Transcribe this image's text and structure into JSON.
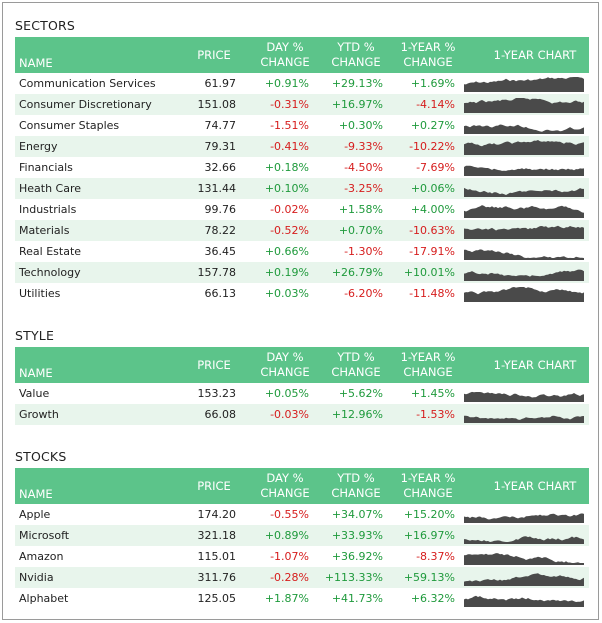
{
  "headers": {
    "name": "NAME",
    "price": "PRICE",
    "day1": "DAY %",
    "day2": "CHANGE",
    "ytd1": "YTD %",
    "ytd2": "CHANGE",
    "yr1": "1-YEAR %",
    "yr2": "CHANGE",
    "chart": "1-YEAR CHART"
  },
  "colors": {
    "header_bg": "#5cc48a",
    "alt_row": "#e8f5ec",
    "positive": "#1f9a3c",
    "negative": "#d61d1d",
    "sparkline": "#4a4a4a"
  },
  "sections": [
    {
      "title": "SECTORS",
      "rows": [
        {
          "name": "Communication Services",
          "price": "61.97",
          "day": "+0.91%",
          "ytd": "+29.13%",
          "yr": "+1.69%"
        },
        {
          "name": "Consumer Discretionary",
          "price": "151.08",
          "day": "-0.31%",
          "ytd": "+16.97%",
          "yr": "-4.14%"
        },
        {
          "name": "Consumer Staples",
          "price": "74.77",
          "day": "-1.51%",
          "ytd": "+0.30%",
          "yr": "+0.27%"
        },
        {
          "name": "Energy",
          "price": "79.31",
          "day": "-0.41%",
          "ytd": "-9.33%",
          "yr": "-10.22%"
        },
        {
          "name": "Financials",
          "price": "32.66",
          "day": "+0.18%",
          "ytd": "-4.50%",
          "yr": "-7.69%"
        },
        {
          "name": "Heath Care",
          "price": "131.44",
          "day": "+0.10%",
          "ytd": "-3.25%",
          "yr": "+0.06%"
        },
        {
          "name": "Industrials",
          "price": "99.76",
          "day": "-0.02%",
          "ytd": "+1.58%",
          "yr": "+4.00%"
        },
        {
          "name": "Materials",
          "price": "78.22",
          "day": "-0.52%",
          "ytd": "+0.70%",
          "yr": "-10.63%"
        },
        {
          "name": "Real Estate",
          "price": "36.45",
          "day": "+0.66%",
          "ytd": "-1.30%",
          "yr": "-17.91%"
        },
        {
          "name": "Technology",
          "price": "157.78",
          "day": "+0.19%",
          "ytd": "+26.79%",
          "yr": "+10.01%"
        },
        {
          "name": "Utilities",
          "price": "66.13",
          "day": "+0.03%",
          "ytd": "-6.20%",
          "yr": "-11.48%"
        }
      ]
    },
    {
      "title": "STYLE",
      "rows": [
        {
          "name": "Value",
          "price": "153.23",
          "day": "+0.05%",
          "ytd": "+5.62%",
          "yr": "+1.45%"
        },
        {
          "name": "Growth",
          "price": "66.08",
          "day": "-0.03%",
          "ytd": "+12.96%",
          "yr": "-1.53%"
        }
      ]
    },
    {
      "title": "STOCKS",
      "rows": [
        {
          "name": "Apple",
          "price": "174.20",
          "day": "-0.55%",
          "ytd": "+34.07%",
          "yr": "+15.20%"
        },
        {
          "name": "Microsoft",
          "price": "321.18",
          "day": "+0.89%",
          "ytd": "+33.93%",
          "yr": "+16.97%"
        },
        {
          "name": "Amazon",
          "price": "115.01",
          "day": "-1.07%",
          "ytd": "+36.92%",
          "yr": "-8.37%"
        },
        {
          "name": "Nvidia",
          "price": "311.76",
          "day": "-0.28%",
          "ytd": "+113.33%",
          "yr": "+59.13%"
        },
        {
          "name": "Alphabet",
          "price": "125.05",
          "day": "+1.87%",
          "ytd": "+41.73%",
          "yr": "+6.32%"
        }
      ]
    }
  ]
}
